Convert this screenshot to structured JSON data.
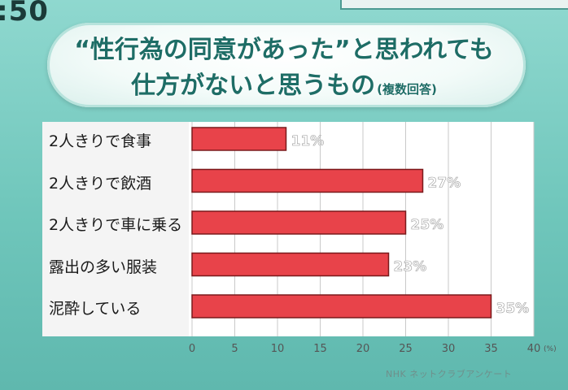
{
  "clock": ":50",
  "title": {
    "line1": "“性行為の同意があった”と思われても",
    "line2": "仕方がないと思うもの",
    "note": "(複数回答)"
  },
  "source": "NHK ネットクラブアンケート",
  "colors": {
    "bar": "#e8434a",
    "bar_edge": "#7a1a1c",
    "value_label": "#ffffff",
    "grid": "#c9c9c9",
    "axis_text": "#555555"
  },
  "chart_data": {
    "type": "bar",
    "orientation": "horizontal",
    "title": "“性行為の同意があった”と思われても仕方がないと思うもの(複数回答)",
    "categories": [
      "2人きりで食事",
      "2人きりで飲酒",
      "2人きりで車に乗る",
      "露出の多い服装",
      "泥酔している"
    ],
    "values": [
      11,
      27,
      25,
      23,
      35
    ],
    "value_labels": [
      "11%",
      "27%",
      "25%",
      "23%",
      "35%"
    ],
    "xlim": [
      0,
      40
    ],
    "x_ticks": [
      0,
      5,
      10,
      15,
      20,
      25,
      30,
      35,
      40
    ],
    "x_unit": "(%)",
    "grid": true,
    "legend": "none"
  }
}
